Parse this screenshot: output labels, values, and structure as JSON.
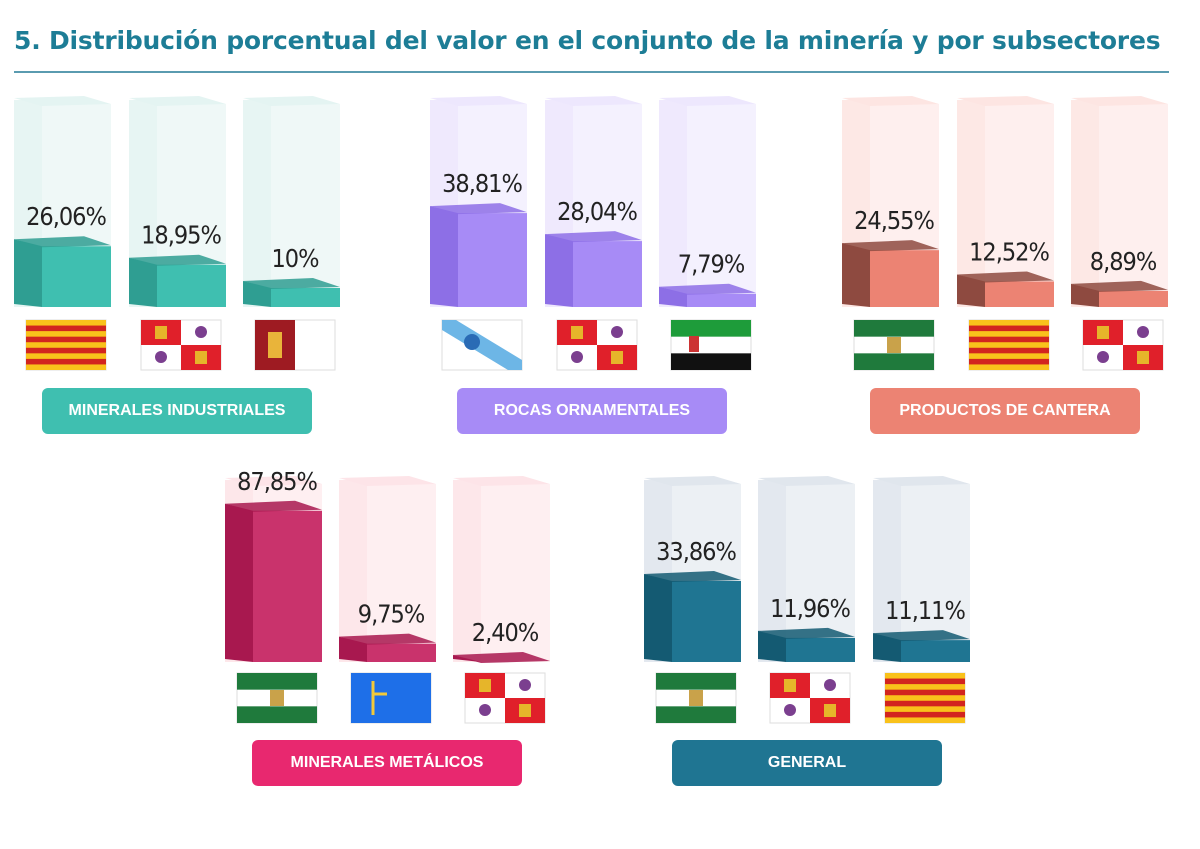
{
  "title": "5.  Distribución porcentual del valor en el conjunto de la minería y por subsectores",
  "chart_data": {
    "type": "bar",
    "title": "5.  Distribución porcentual del valor en el conjunto de la minería y por subsectores",
    "unit": "%",
    "groups": [
      {
        "label": "MINERALES INDUSTRIALES",
        "color": "#3fbfb0",
        "side": "#2f9e92",
        "ghost": "#e4f4f2",
        "bars": [
          {
            "value": 26.06,
            "label": "26,06%",
            "flag": "catalonia-flag"
          },
          {
            "value": 18.95,
            "label": "18,95%",
            "flag": "castilla-y-leon-flag"
          },
          {
            "value": 10,
            "label": "10%",
            "flag": "castilla-la-mancha-flag"
          }
        ]
      },
      {
        "label": "ROCAS ORNAMENTALES",
        "color": "#a78bf6",
        "side": "#8d6fe6",
        "ghost": "#ede7fd",
        "bars": [
          {
            "value": 38.81,
            "label": "38,81%",
            "flag": "galicia-flag"
          },
          {
            "value": 28.04,
            "label": "28,04%",
            "flag": "castilla-y-leon-flag"
          },
          {
            "value": 7.79,
            "label": "7,79%",
            "flag": "extremadura-flag"
          }
        ]
      },
      {
        "label": "PRODUCTOS DE CANTERA",
        "color": "#ec8373",
        "side": "#8e4a40",
        "ghost": "#fde5e2",
        "bars": [
          {
            "value": 24.55,
            "label": "24,55%",
            "flag": "andalucia-flag"
          },
          {
            "value": 12.52,
            "label": "12,52%",
            "flag": "catalonia-flag"
          },
          {
            "value": 8.89,
            "label": "8,89%",
            "flag": "castilla-y-leon-flag"
          }
        ]
      },
      {
        "label": "MINERALES METÁLICOS",
        "color": "#c9336c",
        "side": "#a8184f",
        "ghost": "#fde4e8",
        "pill": "#e8286f",
        "bars": [
          {
            "value": 87.85,
            "label": "87,85%",
            "flag": "andalucia-flag"
          },
          {
            "value": 9.75,
            "label": "9,75%",
            "flag": "asturias-flag"
          },
          {
            "value": 2.4,
            "label": "2,40%",
            "flag": "castilla-y-leon-flag"
          }
        ]
      },
      {
        "label": "GENERAL",
        "color": "#1f7592",
        "side": "#145a72",
        "ghost": "#e0e6ed",
        "bars": [
          {
            "value": 33.86,
            "label": "33,86%",
            "flag": "andalucia-flag"
          },
          {
            "value": 11.96,
            "label": "11,96%",
            "flag": "castilla-y-leon-flag"
          },
          {
            "value": 11.11,
            "label": "11,11%",
            "flag": "catalonia-flag"
          }
        ]
      }
    ]
  }
}
